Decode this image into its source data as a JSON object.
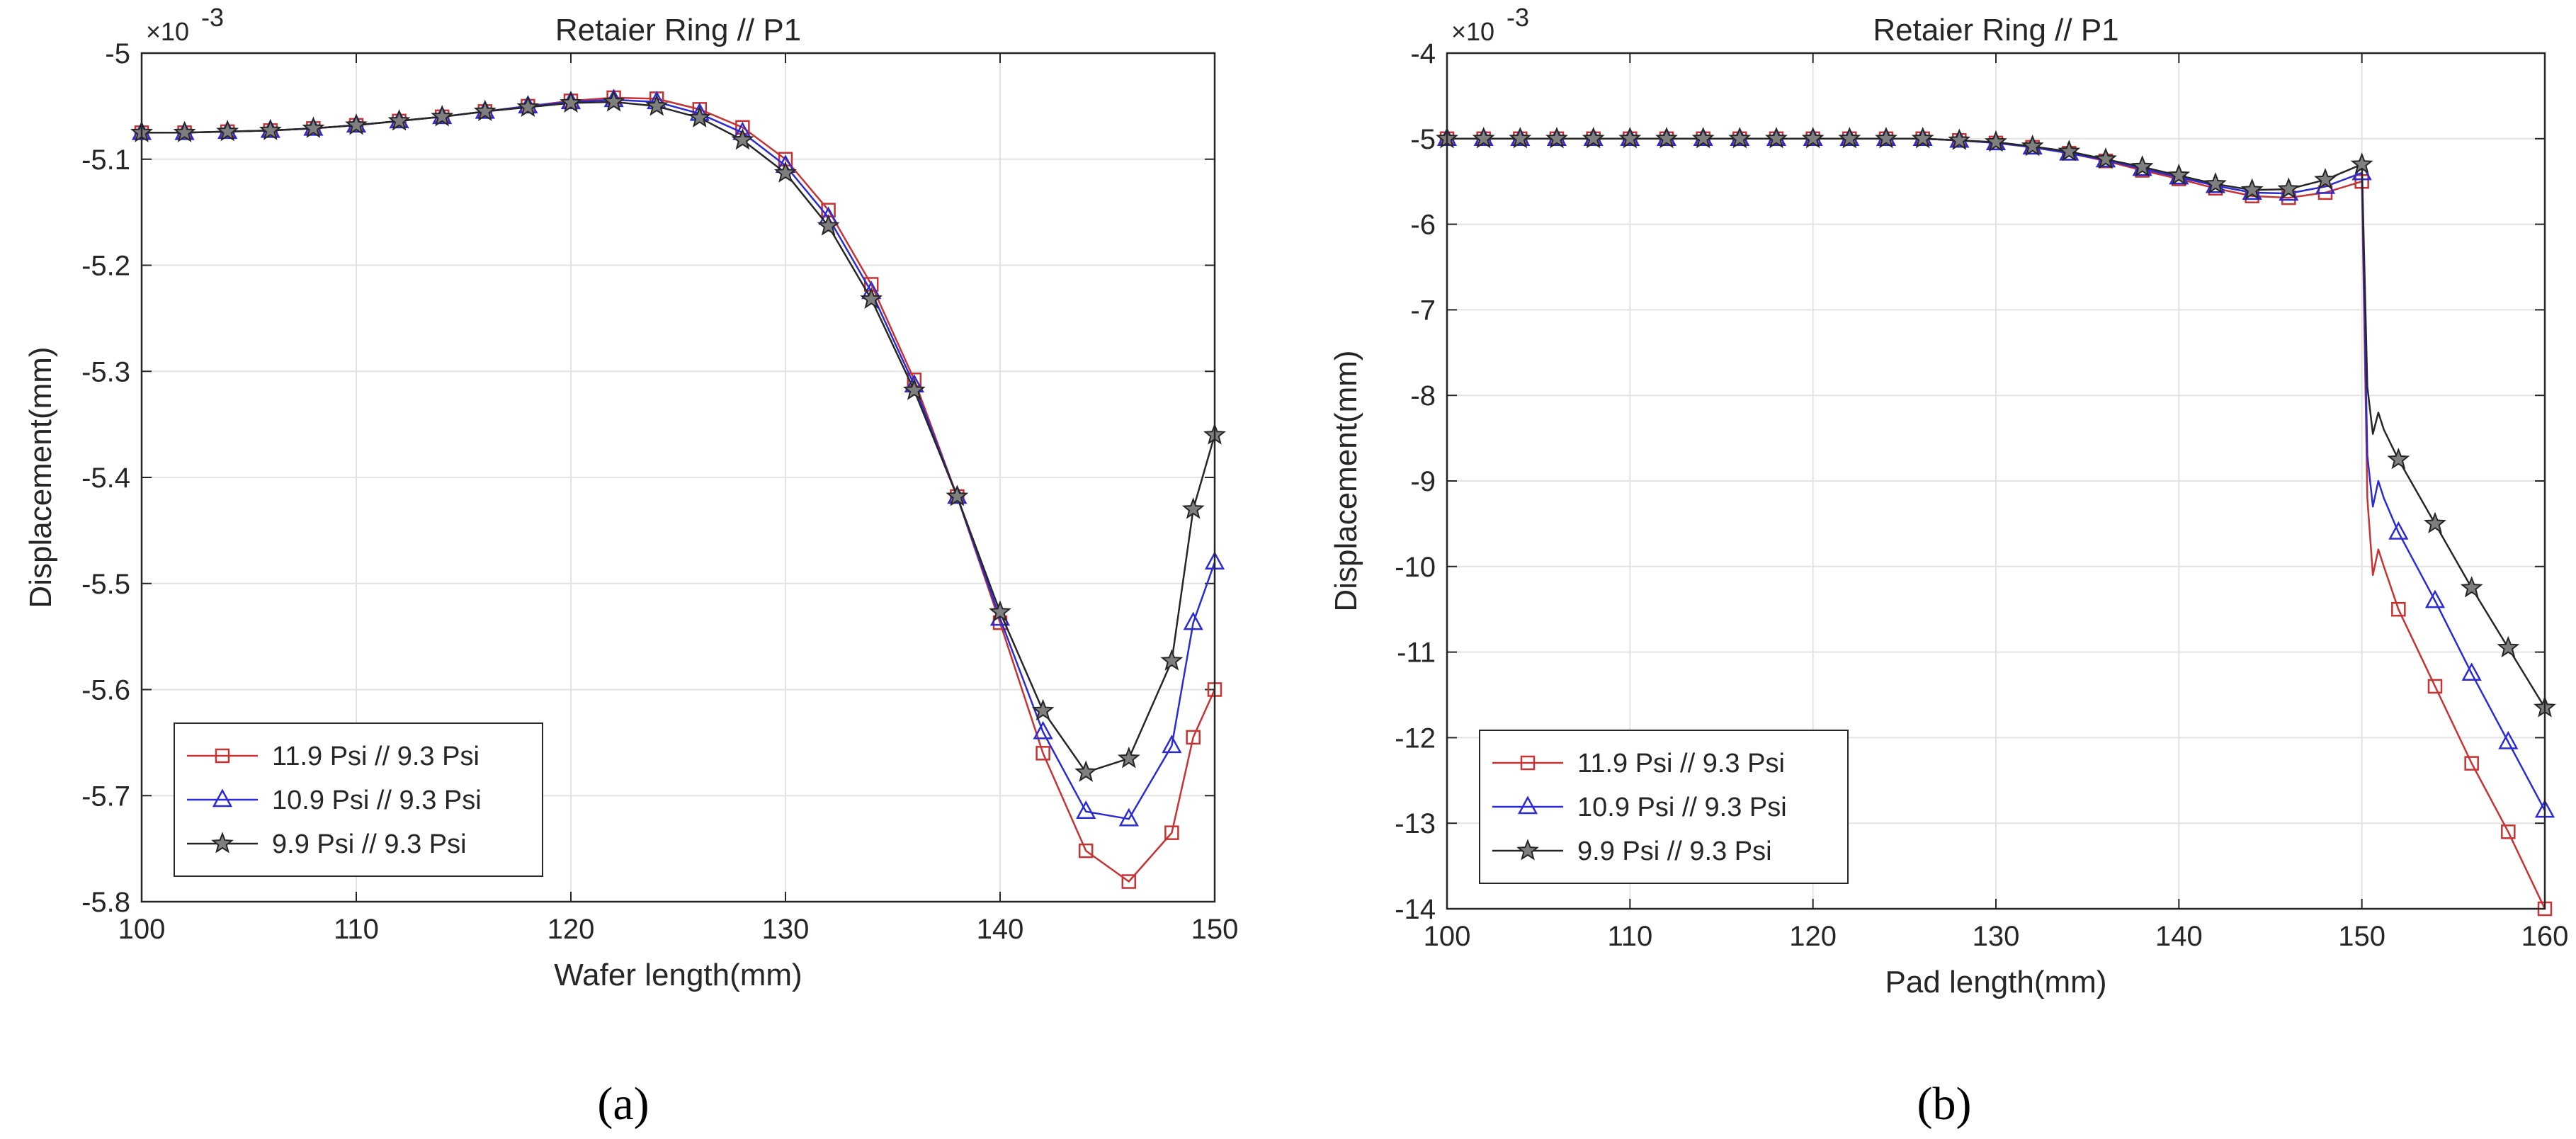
{
  "chart_data": [
    {
      "type": "line",
      "panel": "a",
      "caption": "(a)",
      "title": "Retaier Ring // P1",
      "xlabel": "Wafer length(mm)",
      "ylabel": "Displacement(mm)",
      "exponent_label": "×10",
      "exponent_power": "-3",
      "xlim": [
        100,
        150
      ],
      "ylim": [
        -5.8,
        -5.0
      ],
      "xticks": [
        100,
        110,
        120,
        130,
        140,
        150
      ],
      "yticks": [
        -5.8,
        -5.7,
        -5.6,
        -5.5,
        -5.4,
        -5.3,
        -5.2,
        -5.1,
        -5.0
      ],
      "ytick_labels": [
        "-5.8",
        "-5.7",
        "-5.6",
        "-5.5",
        "-5.4",
        "-5.3",
        "-5.2",
        "-5.1",
        "-5"
      ],
      "grid": true,
      "legend_position": "bottom-left",
      "series": [
        {
          "name": "11.9 Psi // 9.3 Psi",
          "color": "#c83232",
          "marker": "square",
          "x": [
            100,
            102,
            104,
            106,
            108,
            110,
            112,
            114,
            116,
            118,
            120,
            122,
            124,
            126,
            128,
            130,
            132,
            134,
            136,
            138,
            140,
            142,
            144,
            146,
            148,
            149,
            150
          ],
          "y": [
            -5.075,
            -5.075,
            -5.074,
            -5.073,
            -5.071,
            -5.068,
            -5.064,
            -5.06,
            -5.055,
            -5.05,
            -5.045,
            -5.042,
            -5.043,
            -5.053,
            -5.07,
            -5.1,
            -5.148,
            -5.218,
            -5.308,
            -5.418,
            -5.537,
            -5.66,
            -5.752,
            -5.781,
            -5.735,
            -5.645,
            -5.6
          ]
        },
        {
          "name": "10.9 Psi // 9.3 Psi",
          "color": "#2b2bd6",
          "marker": "triangle",
          "x": [
            100,
            102,
            104,
            106,
            108,
            110,
            112,
            114,
            116,
            118,
            120,
            122,
            124,
            126,
            128,
            130,
            132,
            134,
            136,
            138,
            140,
            142,
            144,
            146,
            148,
            149,
            150
          ],
          "y": [
            -5.075,
            -5.075,
            -5.074,
            -5.073,
            -5.071,
            -5.068,
            -5.064,
            -5.06,
            -5.055,
            -5.05,
            -5.046,
            -5.044,
            -5.046,
            -5.057,
            -5.075,
            -5.106,
            -5.155,
            -5.225,
            -5.313,
            -5.418,
            -5.533,
            -5.64,
            -5.715,
            -5.722,
            -5.653,
            -5.537,
            -5.48
          ]
        },
        {
          "name": "9.9 Psi // 9.3 Psi",
          "color": "#262626",
          "marker": "star",
          "x": [
            100,
            102,
            104,
            106,
            108,
            110,
            112,
            114,
            116,
            118,
            120,
            122,
            124,
            126,
            128,
            130,
            132,
            134,
            136,
            138,
            140,
            142,
            144,
            146,
            148,
            149,
            150
          ],
          "y": [
            -5.075,
            -5.075,
            -5.074,
            -5.073,
            -5.071,
            -5.068,
            -5.064,
            -5.06,
            -5.055,
            -5.051,
            -5.047,
            -5.046,
            -5.05,
            -5.061,
            -5.082,
            -5.113,
            -5.163,
            -5.232,
            -5.318,
            -5.418,
            -5.527,
            -5.62,
            -5.678,
            -5.665,
            -5.573,
            -5.43,
            -5.36
          ]
        }
      ]
    },
    {
      "type": "line",
      "panel": "b",
      "caption": "(b)",
      "title": "Retaier Ring // P1",
      "xlabel": "Pad length(mm)",
      "ylabel": "Displacement(mm)",
      "exponent_label": "×10",
      "exponent_power": "-3",
      "xlim": [
        100,
        160
      ],
      "ylim": [
        -14,
        -4
      ],
      "xticks": [
        100,
        110,
        120,
        130,
        140,
        150,
        160
      ],
      "yticks": [
        -14,
        -13,
        -12,
        -11,
        -10,
        -9,
        -8,
        -7,
        -6,
        -5,
        -4
      ],
      "ytick_labels": [
        "-14",
        "-13",
        "-12",
        "-11",
        "-10",
        "-9",
        "-8",
        "-7",
        "-6",
        "-5",
        "-4"
      ],
      "grid": true,
      "legend_position": "bottom-left",
      "series": [
        {
          "name": "11.9 Psi // 9.3 Psi",
          "color": "#c83232",
          "marker": "square",
          "x": [
            100,
            102,
            104,
            106,
            108,
            110,
            112,
            114,
            116,
            118,
            120,
            122,
            124,
            126,
            128,
            130,
            132,
            134,
            136,
            138,
            140,
            142,
            144,
            146,
            148,
            150,
            150.3,
            150.6,
            150.9,
            151.2,
            152,
            154,
            156,
            158,
            160
          ],
          "y": [
            -5.0,
            -5.0,
            -5.0,
            -5.0,
            -5.0,
            -5.0,
            -5.0,
            -5.0,
            -5.0,
            -5.0,
            -5.0,
            -5.0,
            -5.0,
            -5.0,
            -5.02,
            -5.05,
            -5.1,
            -5.17,
            -5.26,
            -5.37,
            -5.47,
            -5.58,
            -5.67,
            -5.69,
            -5.63,
            -5.5,
            -9.2,
            -10.1,
            -9.8,
            -10.0,
            -10.5,
            -11.4,
            -12.3,
            -13.1,
            -14.0
          ]
        },
        {
          "name": "10.9 Psi // 9.3 Psi",
          "color": "#2b2bd6",
          "marker": "triangle",
          "x": [
            100,
            102,
            104,
            106,
            108,
            110,
            112,
            114,
            116,
            118,
            120,
            122,
            124,
            126,
            128,
            130,
            132,
            134,
            136,
            138,
            140,
            142,
            144,
            146,
            148,
            150,
            150.3,
            150.6,
            150.9,
            151.2,
            152,
            154,
            156,
            158,
            160
          ],
          "y": [
            -5.0,
            -5.0,
            -5.0,
            -5.0,
            -5.0,
            -5.0,
            -5.0,
            -5.0,
            -5.0,
            -5.0,
            -5.0,
            -5.0,
            -5.0,
            -5.0,
            -5.02,
            -5.05,
            -5.1,
            -5.17,
            -5.25,
            -5.35,
            -5.45,
            -5.55,
            -5.63,
            -5.64,
            -5.56,
            -5.4,
            -8.7,
            -9.3,
            -9.0,
            -9.2,
            -9.6,
            -10.4,
            -11.25,
            -12.05,
            -12.85
          ]
        },
        {
          "name": "9.9 Psi // 9.3 Psi",
          "color": "#262626",
          "marker": "star",
          "x": [
            100,
            102,
            104,
            106,
            108,
            110,
            112,
            114,
            116,
            118,
            120,
            122,
            124,
            126,
            128,
            130,
            132,
            134,
            136,
            138,
            140,
            142,
            144,
            146,
            148,
            150,
            150.3,
            150.6,
            150.9,
            151.2,
            152,
            154,
            156,
            158,
            160
          ],
          "y": [
            -5.0,
            -5.0,
            -5.0,
            -5.0,
            -5.0,
            -5.0,
            -5.0,
            -5.0,
            -5.0,
            -5.0,
            -5.0,
            -5.0,
            -5.0,
            -5.0,
            -5.02,
            -5.04,
            -5.09,
            -5.15,
            -5.24,
            -5.33,
            -5.43,
            -5.53,
            -5.6,
            -5.59,
            -5.48,
            -5.3,
            -7.9,
            -8.45,
            -8.2,
            -8.4,
            -8.75,
            -9.5,
            -10.25,
            -10.95,
            -11.65
          ]
        }
      ]
    }
  ]
}
